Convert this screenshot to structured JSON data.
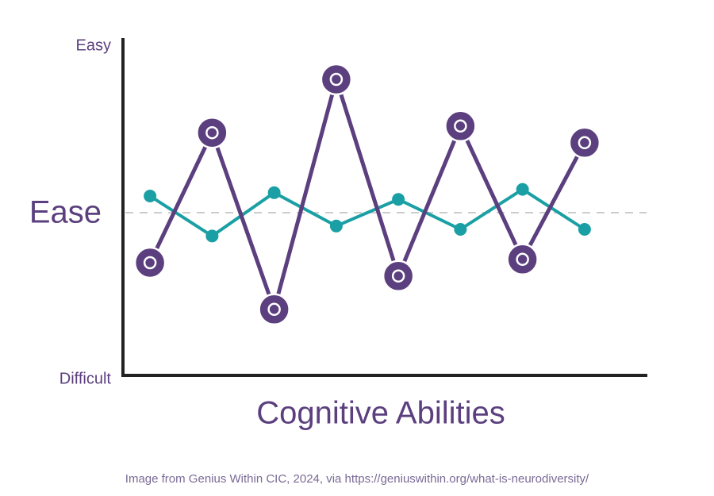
{
  "chart_data": {
    "type": "line",
    "xlabel": "Cognitive Abilities",
    "caption": "Image from Genius Within CIC, 2024, via https://geniuswithin.org/what-is-neurodiversity/",
    "categories": [
      null,
      null,
      null,
      null,
      null,
      null,
      null,
      null
    ],
    "series": [
      {
        "color": "#5b3f7e",
        "values": [
          35,
          74,
          21,
          90,
          31,
          76,
          36,
          71
        ]
      },
      {
        "color": "#1aa0a4",
        "values": [
          55,
          43,
          56,
          46,
          54,
          45,
          57,
          45
        ]
      }
    ],
    "ylim": [
      0,
      100
    ],
    "yticks": [
      {
        "value": 0,
        "label": "Difficult"
      },
      {
        "value": 50,
        "label": "Ease"
      },
      {
        "value": 100,
        "label": "Easy"
      }
    ],
    "grid": true
  }
}
